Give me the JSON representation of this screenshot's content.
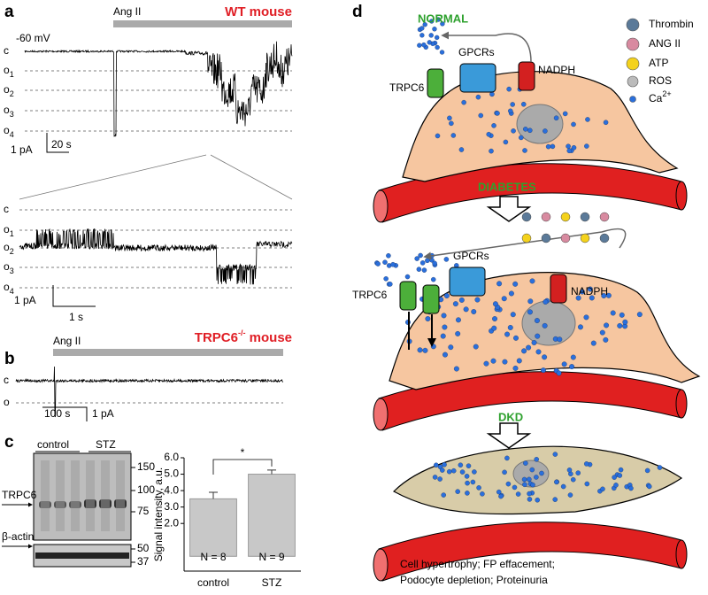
{
  "panel_a": {
    "label": "a",
    "stimulus": "Ang II",
    "genotype": "WT  mouse",
    "holding": "-60 mV",
    "levels": [
      {
        "letter": "c"
      },
      {
        "letter": "o",
        "sub": "1"
      },
      {
        "letter": "o",
        "sub": "2"
      },
      {
        "letter": "o",
        "sub": "3"
      },
      {
        "letter": "o",
        "sub": "4"
      }
    ],
    "scale_current": "1 pA",
    "scale_time": "20 s",
    "zoom_scale_current": "1 pA",
    "zoom_scale_time": "1 s"
  },
  "panel_b": {
    "label": "b",
    "stimulus": "Ang II",
    "genotype": {
      "name": "TRPC6",
      "sup": "-/-",
      "suffix": " mouse"
    },
    "levels": [
      "c",
      "o"
    ],
    "scale_time": "100 s",
    "scale_current": "1 pA"
  },
  "panel_c": {
    "label": "c",
    "lanes": [
      "control",
      "STZ"
    ],
    "band_label": "TRPC6",
    "loading_label": "β-actin",
    "markers": [
      "150",
      "100",
      "75",
      "50",
      "37"
    ]
  },
  "chart_data": {
    "type": "bar",
    "ylabel": "Signal intensity, a.u.",
    "categories": [
      "control",
      "STZ"
    ],
    "values": [
      3.5,
      5.0
    ],
    "errors": [
      0.4,
      0.25
    ],
    "annotations": [
      "N = 8",
      "N = 9"
    ],
    "significance": "*",
    "color": "#c8c8c8",
    "ylim": [
      -0.9,
      6.0
    ],
    "yticks": [
      {
        "value": 2,
        "label": "2.0"
      },
      {
        "value": 3,
        "label": "3.0"
      },
      {
        "value": 4,
        "label": "4.0"
      },
      {
        "value": 5,
        "label": "5.0"
      },
      {
        "value": 6,
        "label": "6.0"
      }
    ]
  },
  "panel_d": {
    "label": "d",
    "stages": [
      "NORMAL",
      "DIABETES",
      "DKD"
    ],
    "legend": {
      "thrombin": "Thrombin",
      "ang": "ANG II",
      "atp": "ATP",
      "ros": "ROS",
      "ca": {
        "base": "Ca",
        "sup": "2+"
      }
    },
    "trpc6": "TRPC6",
    "gpcrs": "GPCRs",
    "nadph": "NADPH",
    "outcome": [
      "Cell hypertrophy; FP effacement;",
      "Podocyte depletion; Proteinuria"
    ]
  }
}
